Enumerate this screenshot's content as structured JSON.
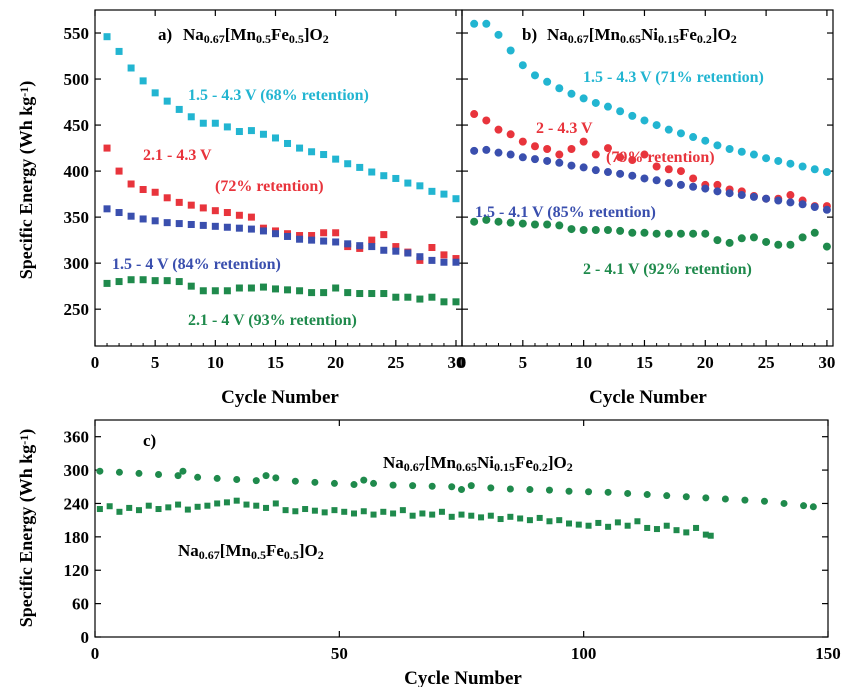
{
  "chart_data": [
    {
      "type": "scatter",
      "panel_label": "a)",
      "title": "Na0.67[Mn0.5Fe0.5]O2",
      "title_parts": [
        [
          "Na",
          ""
        ],
        [
          "0.67",
          "sub"
        ],
        [
          "[Mn",
          ""
        ],
        [
          "0.5",
          "sub"
        ],
        [
          "Fe",
          ""
        ],
        [
          "0.5",
          "sub"
        ],
        [
          "]O",
          ""
        ],
        [
          "2",
          "sub"
        ]
      ],
      "xlabel": "Cycle Number",
      "ylabel": "Specific Energy (Wh kg-1)",
      "ylabel_parts": [
        [
          "Specific Energy (Wh kg",
          ""
        ],
        [
          "-1",
          "sup"
        ],
        [
          ")",
          ""
        ]
      ],
      "xlim": [
        0,
        30.5
      ],
      "ylim": [
        210,
        575
      ],
      "xticks": [
        0,
        5,
        10,
        15,
        20,
        25,
        30
      ],
      "yticks": [
        250,
        300,
        350,
        400,
        450,
        500,
        550
      ],
      "marker": "square",
      "series": [
        {
          "name": "1.5 - 4.3 V (68% retention)",
          "color": "#22b5d1",
          "x": [
            1,
            2,
            3,
            4,
            5,
            6,
            7,
            8,
            9,
            10,
            11,
            12,
            13,
            14,
            15,
            16,
            17,
            18,
            19,
            20,
            21,
            22,
            23,
            24,
            25,
            26,
            27,
            28,
            29,
            30
          ],
          "y": [
            546,
            530,
            512,
            498,
            485,
            476,
            467,
            459,
            452,
            452,
            448,
            443,
            444,
            440,
            436,
            430,
            425,
            421,
            418,
            413,
            408,
            404,
            399,
            395,
            392,
            387,
            384,
            378,
            375,
            370
          ]
        },
        {
          "name": "2.1 - 4.3 V (72% retention)",
          "color": "#e8343c",
          "x": [
            1,
            2,
            3,
            4,
            5,
            6,
            7,
            8,
            9,
            10,
            11,
            12,
            13,
            14,
            15,
            16,
            17,
            18,
            19,
            20,
            21,
            22,
            23,
            24,
            25,
            26,
            27,
            28,
            29,
            30
          ],
          "y": [
            425,
            400,
            386,
            380,
            377,
            371,
            366,
            363,
            360,
            357,
            355,
            352,
            350,
            338,
            335,
            332,
            330,
            330,
            333,
            333,
            318,
            316,
            325,
            331,
            318,
            312,
            303,
            317,
            309,
            305
          ]
        },
        {
          "name": "1.5 - 4 V (84% retention)",
          "color": "#3a4fae",
          "x": [
            1,
            2,
            3,
            4,
            5,
            6,
            7,
            8,
            9,
            10,
            11,
            12,
            13,
            14,
            15,
            16,
            17,
            18,
            19,
            20,
            21,
            22,
            23,
            24,
            25,
            26,
            27,
            28,
            29,
            30
          ],
          "y": [
            359,
            355,
            351,
            348,
            346,
            344,
            343,
            342,
            341,
            340,
            339,
            338,
            337,
            335,
            332,
            329,
            326,
            325,
            324,
            323,
            321,
            319,
            318,
            314,
            313,
            311,
            307,
            303,
            301,
            301
          ]
        },
        {
          "name": "2.1 - 4 V (93% retention)",
          "color": "#1f8a4c",
          "x": [
            1,
            2,
            3,
            4,
            5,
            6,
            7,
            8,
            9,
            10,
            11,
            12,
            13,
            14,
            15,
            16,
            17,
            18,
            19,
            20,
            21,
            22,
            23,
            24,
            25,
            26,
            27,
            28,
            29,
            30
          ],
          "y": [
            278,
            280,
            282,
            282,
            281,
            281,
            280,
            275,
            270,
            270,
            270,
            273,
            273,
            274,
            272,
            271,
            270,
            268,
            268,
            273,
            268,
            267,
            267,
            267,
            263,
            263,
            261,
            263,
            258,
            258
          ]
        }
      ],
      "annotations": [
        "1.5 - 4.3 V (68% retention)",
        "2.1 - 4.3 V",
        "(72% retention)",
        "1.5 - 4 V (84% retention)",
        "2.1 - 4 V  (93% retention)"
      ]
    },
    {
      "type": "scatter",
      "panel_label": "b)",
      "title": "Na0.67[Mn0.65Ni0.15Fe0.2]O2",
      "title_parts": [
        [
          "Na",
          ""
        ],
        [
          "0.67",
          "sub"
        ],
        [
          "[Mn",
          ""
        ],
        [
          "0.65",
          "sub"
        ],
        [
          "Ni",
          ""
        ],
        [
          "0.15",
          "sub"
        ],
        [
          "Fe",
          ""
        ],
        [
          "0.2",
          "sub"
        ],
        [
          "]O",
          ""
        ],
        [
          "2",
          "sub"
        ]
      ],
      "xlabel": "Cycle Number",
      "xlim": [
        0,
        30.5
      ],
      "ylim": [
        210,
        575
      ],
      "xticks": [
        0,
        5,
        10,
        15,
        20,
        25,
        30
      ],
      "marker": "circle",
      "series": [
        {
          "name": "1.5 - 4.3 V (71% retention)",
          "color": "#22b5d1",
          "x": [
            1,
            2,
            3,
            4,
            5,
            6,
            7,
            8,
            9,
            10,
            11,
            12,
            13,
            14,
            15,
            16,
            17,
            18,
            19,
            20,
            21,
            22,
            23,
            24,
            25,
            26,
            27,
            28,
            29,
            30
          ],
          "y": [
            560,
            560,
            548,
            531,
            515,
            504,
            497,
            490,
            484,
            479,
            474,
            470,
            465,
            460,
            455,
            450,
            445,
            441,
            437,
            433,
            428,
            424,
            421,
            418,
            414,
            411,
            408,
            405,
            402,
            399
          ]
        },
        {
          "name": "2 - 4.3 V (79% retention)",
          "color": "#e8343c",
          "x": [
            1,
            2,
            3,
            4,
            5,
            6,
            7,
            8,
            9,
            10,
            11,
            12,
            13,
            14,
            15,
            16,
            17,
            18,
            19,
            20,
            21,
            22,
            23,
            24,
            25,
            26,
            27,
            28,
            29,
            30
          ],
          "y": [
            462,
            455,
            445,
            440,
            432,
            427,
            424,
            418,
            424,
            432,
            418,
            425,
            415,
            412,
            418,
            405,
            402,
            400,
            392,
            385,
            385,
            380,
            378,
            373,
            370,
            370,
            374,
            368,
            362,
            362
          ]
        },
        {
          "name": "1.5 - 4.1 V (85% retention)",
          "color": "#3a4fae",
          "x": [
            1,
            2,
            3,
            4,
            5,
            6,
            7,
            8,
            9,
            10,
            11,
            12,
            13,
            14,
            15,
            16,
            17,
            18,
            19,
            20,
            21,
            22,
            23,
            24,
            25,
            26,
            27,
            28,
            29,
            30
          ],
          "y": [
            422,
            423,
            420,
            418,
            415,
            413,
            411,
            409,
            406,
            404,
            401,
            399,
            397,
            395,
            392,
            390,
            387,
            385,
            383,
            381,
            378,
            376,
            374,
            372,
            370,
            368,
            366,
            364,
            361,
            358
          ]
        },
        {
          "name": "2 - 4.1 V (92% retention)",
          "color": "#1f8a4c",
          "x": [
            1,
            2,
            3,
            4,
            5,
            6,
            7,
            8,
            9,
            10,
            11,
            12,
            13,
            14,
            15,
            16,
            17,
            18,
            19,
            20,
            21,
            22,
            23,
            24,
            25,
            26,
            27,
            28,
            29,
            30
          ],
          "y": [
            345,
            347,
            345,
            344,
            343,
            342,
            342,
            341,
            337,
            336,
            336,
            336,
            335,
            333,
            333,
            332,
            332,
            332,
            332,
            332,
            325,
            322,
            327,
            328,
            323,
            320,
            320,
            328,
            333,
            318
          ]
        }
      ],
      "annotations": [
        "1.5 - 4.3 V (71% retention)",
        "2 - 4.3 V",
        "(79% retention)",
        "1.5 - 4.1 V (85% retention)",
        "2 - 4.1 V  (92% retention)"
      ]
    },
    {
      "type": "scatter",
      "panel_label": "c)",
      "xlabel": "Cycle Number",
      "ylabel": "Specific Energy (Wh kg-1)",
      "ylabel_parts": [
        [
          "Specific Energy (Wh kg",
          ""
        ],
        [
          "-1",
          "sup"
        ],
        [
          ")",
          ""
        ]
      ],
      "xlim": [
        0,
        150
      ],
      "ylim": [
        0,
        390
      ],
      "xticks": [
        0,
        50,
        100,
        150
      ],
      "yticks": [
        0,
        60,
        120,
        180,
        240,
        300,
        360
      ],
      "series": [
        {
          "name": "Na0.67[Mn0.65Ni0.15Fe0.2]O2",
          "color": "#1f8a4c",
          "marker": "circle",
          "label_parts": [
            [
              "Na",
              ""
            ],
            [
              "0.67",
              "sub"
            ],
            [
              "[Mn",
              ""
            ],
            [
              "0.65",
              "sub"
            ],
            [
              "Ni",
              ""
            ],
            [
              "0.15",
              "sub"
            ],
            [
              "Fe",
              ""
            ],
            [
              "0.2",
              "sub"
            ],
            [
              "]O",
              ""
            ],
            [
              "2",
              "sub"
            ]
          ],
          "x": [
            1,
            5,
            9,
            13,
            17,
            18,
            21,
            25,
            29,
            33,
            35,
            37,
            41,
            45,
            49,
            53,
            55,
            57,
            61,
            65,
            69,
            73,
            75,
            77,
            81,
            85,
            89,
            93,
            97,
            101,
            105,
            109,
            113,
            117,
            121,
            125,
            129,
            133,
            137,
            141,
            145,
            147
          ],
          "y": [
            298,
            296,
            294,
            292,
            290,
            298,
            287,
            285,
            283,
            281,
            290,
            286,
            280,
            278,
            276,
            274,
            282,
            276,
            273,
            272,
            271,
            270,
            265,
            272,
            268,
            266,
            265,
            264,
            262,
            261,
            260,
            258,
            256,
            254,
            252,
            250,
            248,
            246,
            244,
            240,
            236,
            234
          ]
        },
        {
          "name": "Na0.67[Mn0.5Fe0.5]O2",
          "color": "#1f8a4c",
          "marker": "square",
          "label_parts": [
            [
              "Na",
              ""
            ],
            [
              "0.67",
              "sub"
            ],
            [
              "[Mn",
              ""
            ],
            [
              "0.5",
              "sub"
            ],
            [
              "Fe",
              ""
            ],
            [
              "0.5",
              "sub"
            ],
            [
              "]O",
              ""
            ],
            [
              "2",
              "sub"
            ]
          ],
          "x": [
            1,
            3,
            5,
            7,
            9,
            11,
            13,
            15,
            17,
            19,
            21,
            23,
            25,
            27,
            29,
            31,
            33,
            35,
            37,
            39,
            41,
            43,
            45,
            47,
            49,
            51,
            53,
            55,
            57,
            59,
            61,
            63,
            65,
            67,
            69,
            71,
            73,
            75,
            77,
            79,
            81,
            83,
            85,
            87,
            89,
            91,
            93,
            95,
            97,
            99,
            101,
            103,
            105,
            107,
            109,
            111,
            113,
            115,
            117,
            119,
            121,
            123,
            125,
            126
          ],
          "y": [
            230,
            235,
            225,
            232,
            228,
            236,
            230,
            233,
            238,
            229,
            234,
            236,
            240,
            242,
            245,
            238,
            236,
            232,
            240,
            228,
            226,
            230,
            227,
            224,
            228,
            225,
            222,
            226,
            220,
            225,
            222,
            228,
            218,
            222,
            220,
            225,
            216,
            220,
            218,
            215,
            218,
            212,
            216,
            213,
            210,
            214,
            208,
            210,
            204,
            202,
            200,
            205,
            198,
            206,
            200,
            208,
            196,
            194,
            200,
            192,
            188,
            196,
            184,
            182
          ]
        }
      ]
    }
  ]
}
